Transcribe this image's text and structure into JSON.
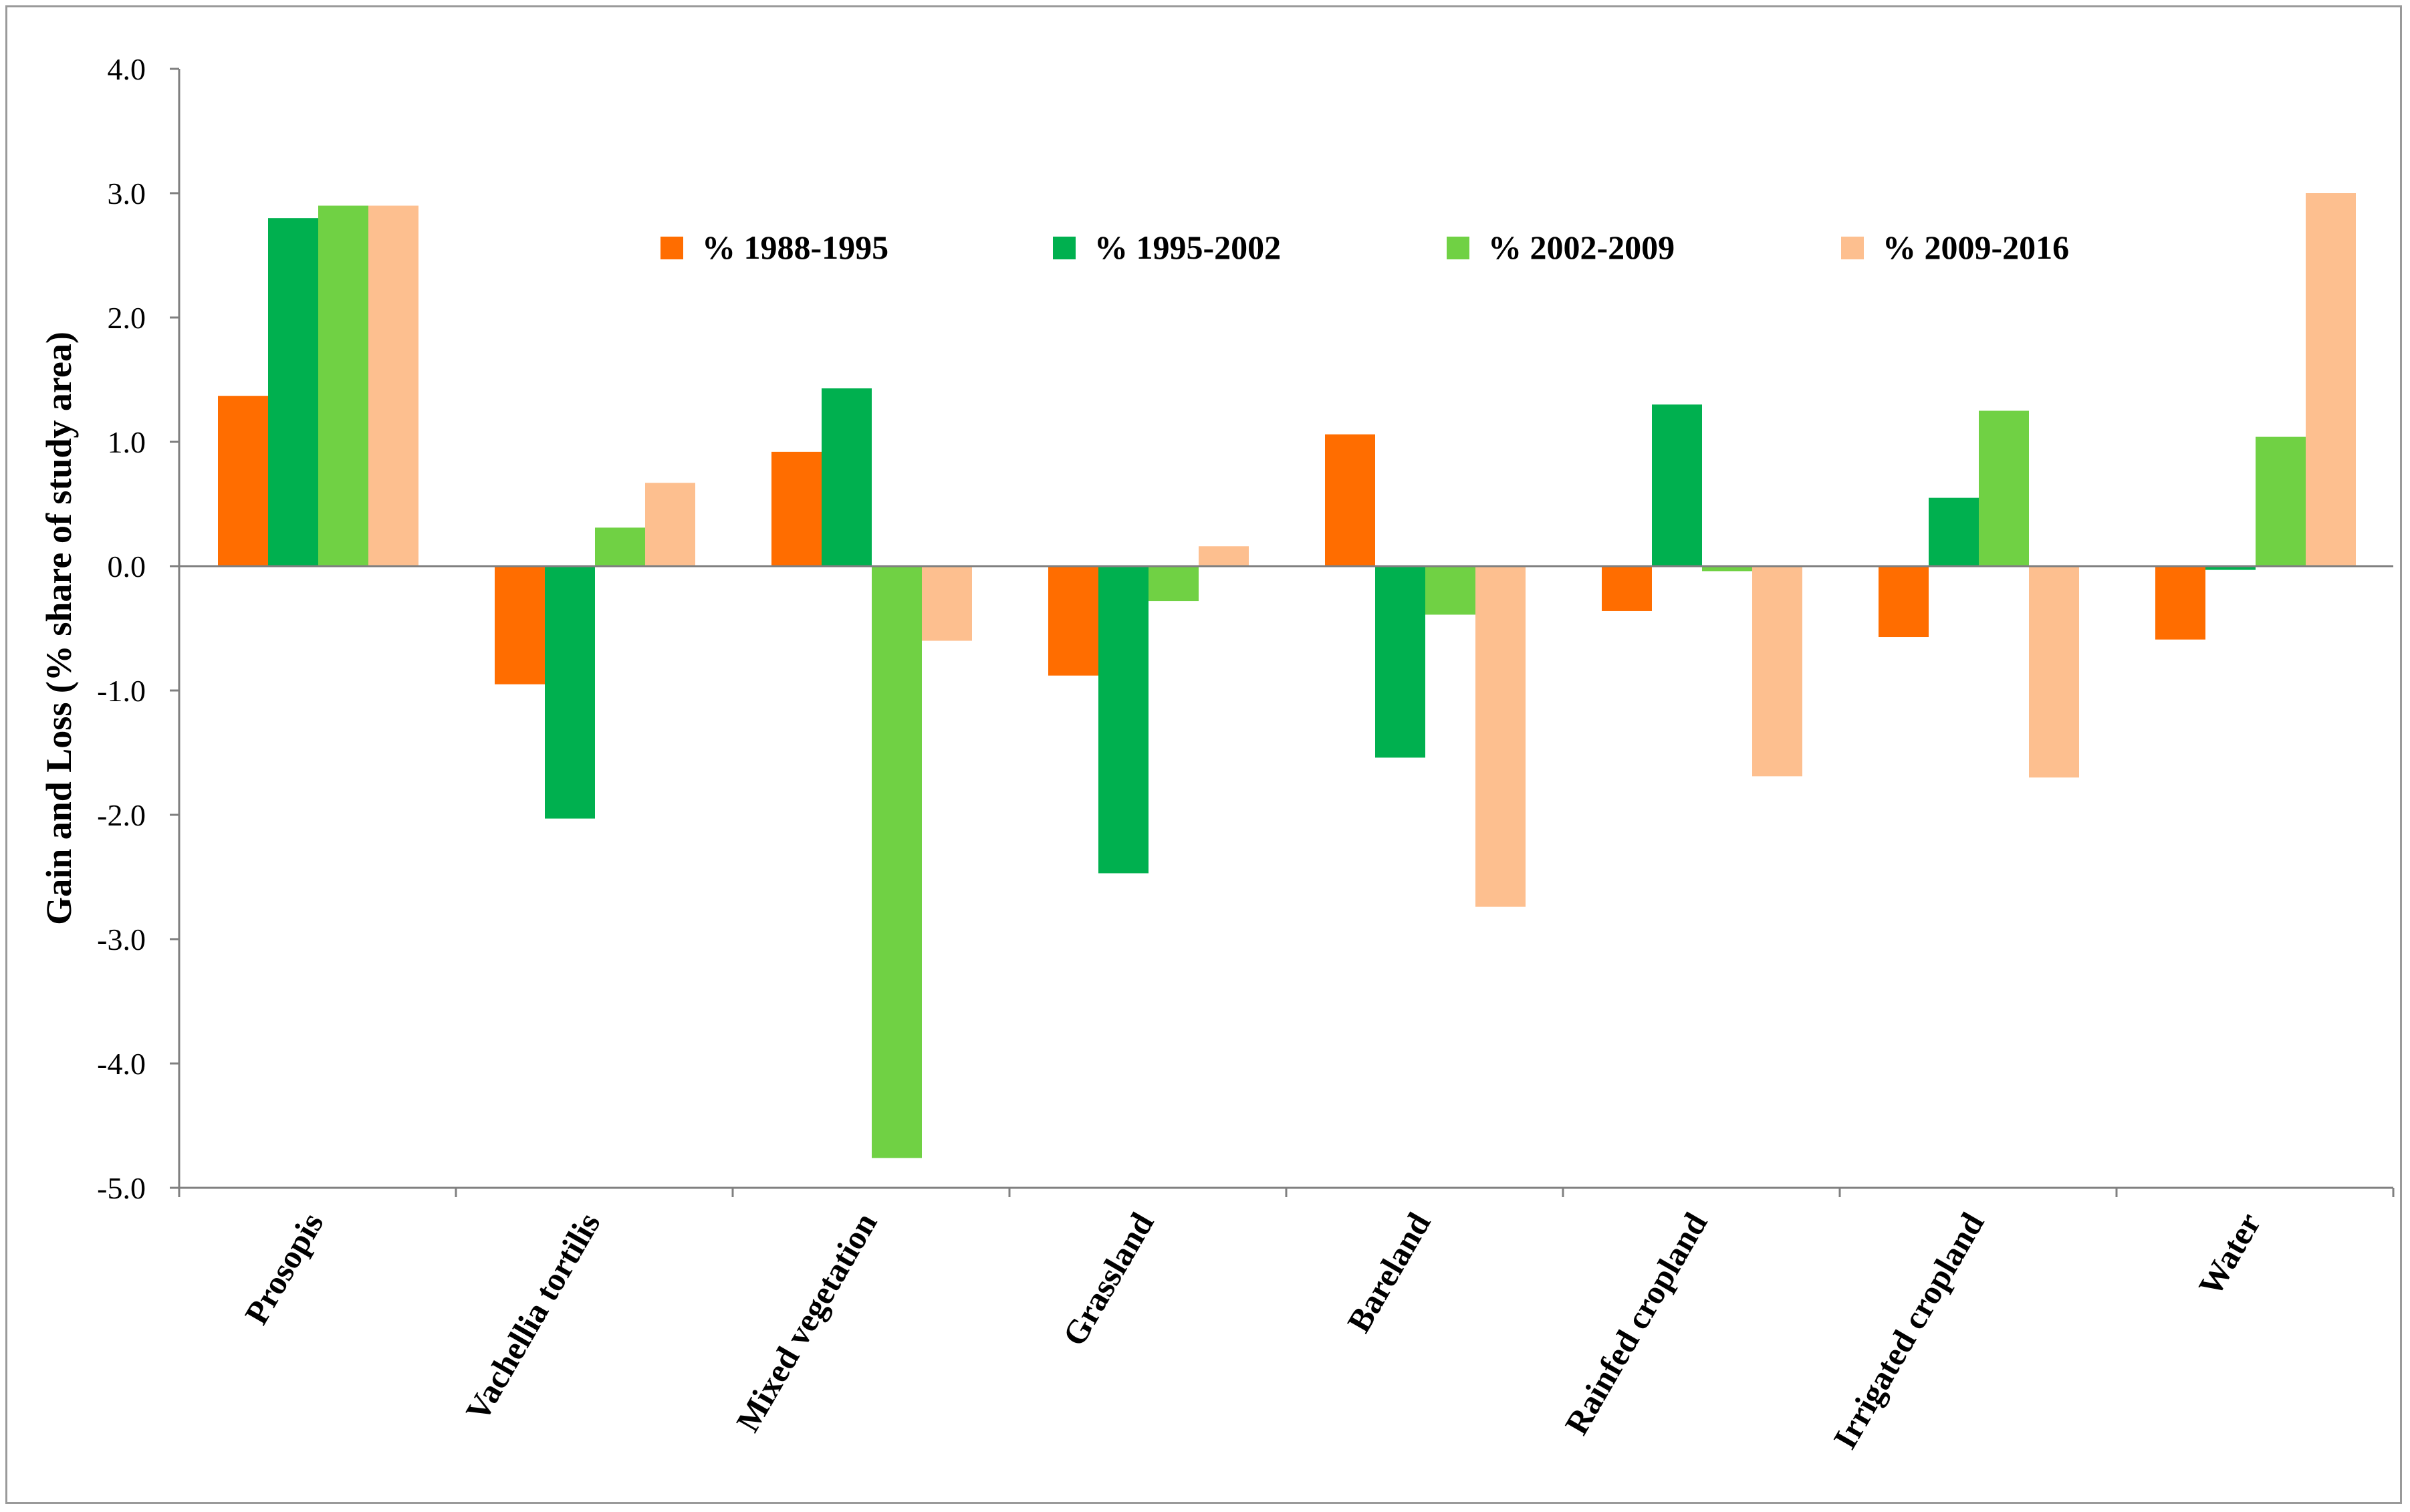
{
  "chart_data": {
    "type": "bar",
    "title": "",
    "xlabel": "",
    "ylabel": "Gain and Loss (% share of study area)",
    "ylim": [
      -5.0,
      4.0
    ],
    "ytick_step": 1.0,
    "ytick_labels": [
      "4.0",
      "3.0",
      "2.0",
      "1.0",
      "0.0",
      "-1.0",
      "-2.0",
      "-3.0",
      "-4.0",
      "-5.0"
    ],
    "grid": false,
    "legend_position": "top-center",
    "categories": [
      "Prosopis",
      "Vachellia tortilis",
      "Mixed vegetation",
      "Grassland",
      "Bareland",
      "Rainfed cropland",
      "Irrigated cropland",
      "Water"
    ],
    "series": [
      {
        "name": "% 1988-1995",
        "color": "#ff6d00",
        "values": [
          1.37,
          -0.95,
          0.92,
          -0.88,
          1.06,
          -0.36,
          -0.57,
          -0.59
        ]
      },
      {
        "name": "% 1995-2002",
        "color": "#00b04f",
        "values": [
          2.8,
          -2.03,
          1.43,
          -2.47,
          -1.54,
          1.3,
          0.55,
          -0.03
        ]
      },
      {
        "name": "% 2002-2009",
        "color": "#70d144",
        "values": [
          2.9,
          0.31,
          -4.76,
          -0.28,
          -0.39,
          -0.04,
          1.25,
          1.04
        ]
      },
      {
        "name": "% 2009-2016",
        "color": "#fdbf8f",
        "values": [
          2.9,
          0.67,
          -0.6,
          0.16,
          -2.74,
          -1.69,
          -1.7,
          3.0
        ]
      }
    ]
  }
}
